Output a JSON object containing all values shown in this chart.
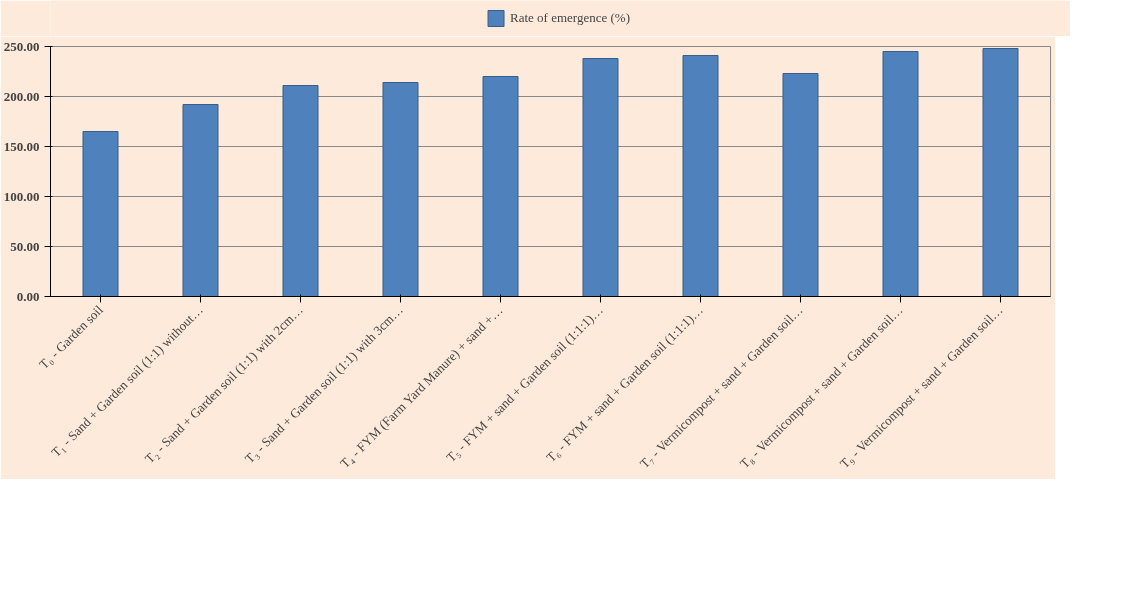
{
  "chart_data": {
    "type": "bar",
    "categories": [
      "T₀ - Garden soil",
      "T₁ - Sand + Garden soil (1:1) without…",
      "T₂ - Sand + Garden soil (1:1) with 2cm…",
      "T₃ - Sand + Garden soil (1:1) with 3cm…",
      "T₄ - FYM (Farm Yard Manure) + sand +…",
      "T₅ - FYM + sand + Garden soil (1:1:1)…",
      "T₆ - FYM + sand + Garden soil (1:1:1)…",
      "T₇ - Vermicompost + sand + Garden soil…",
      "T₈ - Vermicompost + sand + Garden soil…",
      "T₉ - Vermicompost + sand + Garden soil…"
    ],
    "series": [
      {
        "name": "Rate of emergence (%)",
        "color": "#4f81bd",
        "values": [
          165,
          192,
          211,
          214,
          220,
          238,
          241,
          223,
          245,
          248
        ]
      }
    ],
    "ylim": [
      0,
      250
    ],
    "yticks": [
      {
        "value": 0,
        "label": "0.00"
      },
      {
        "value": 50,
        "label": "50.00"
      },
      {
        "value": 100,
        "label": "100.00"
      },
      {
        "value": 150,
        "label": "150.00"
      },
      {
        "value": 200,
        "label": "200.00"
      },
      {
        "value": 250,
        "label": "250.00"
      }
    ],
    "grid": "y",
    "legend": "top"
  }
}
